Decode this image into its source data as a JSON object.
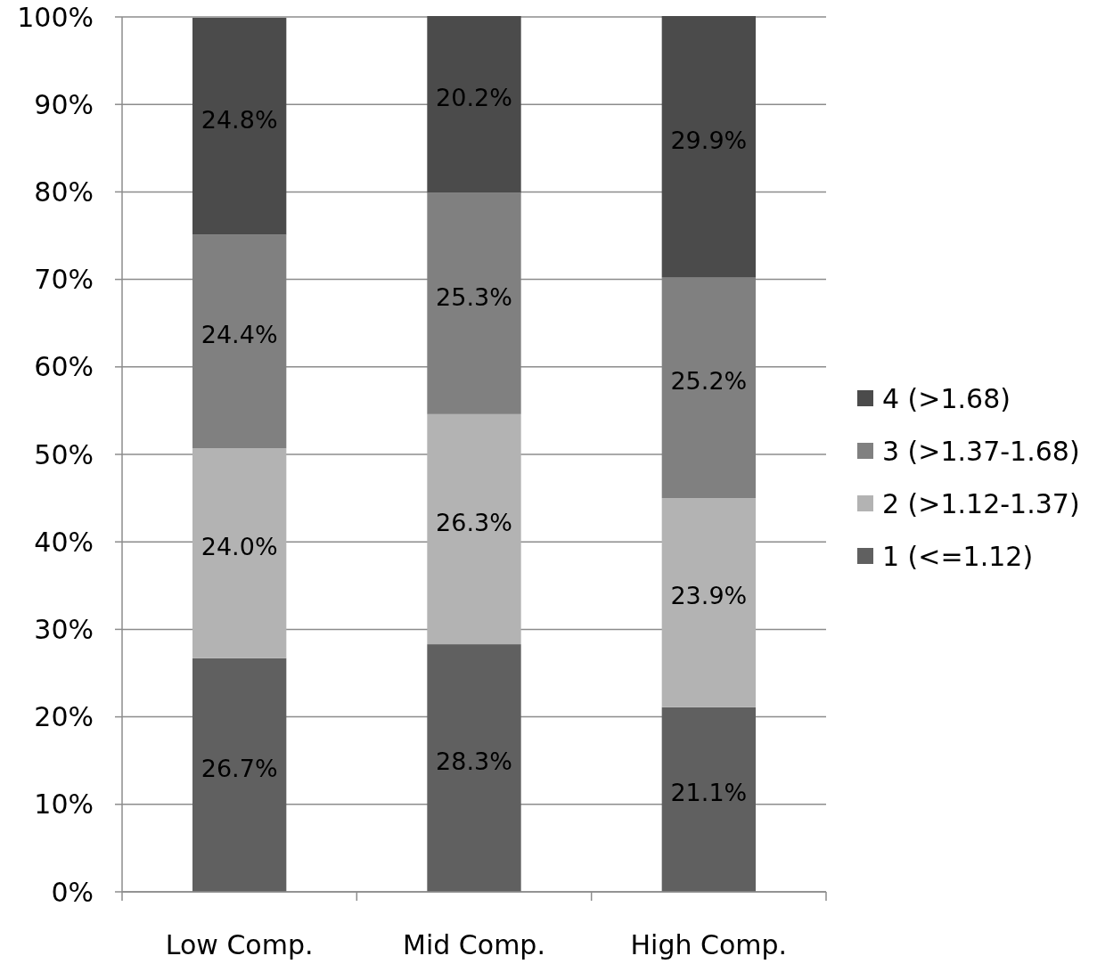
{
  "chart_data": {
    "type": "bar",
    "stacked": true,
    "categories": [
      "Low Comp.",
      "Mid Comp.",
      "High Comp."
    ],
    "series": [
      {
        "name": "1 (<=1.12)",
        "color": "#606060",
        "values": [
          26.7,
          28.3,
          21.1
        ],
        "value_labels": [
          "26.7%",
          "28.3%",
          "21.1%"
        ]
      },
      {
        "name": "2 (>1.12-1.37)",
        "color": "#b3b3b3",
        "values": [
          24.0,
          26.3,
          23.9
        ],
        "value_labels": [
          "24.0%",
          "26.3%",
          "23.9%"
        ]
      },
      {
        "name": "3 (>1.37-1.68)",
        "color": "#808080",
        "values": [
          24.4,
          25.3,
          25.2
        ],
        "value_labels": [
          "24.4%",
          "25.3%",
          "25.2%"
        ]
      },
      {
        "name": "4 (>1.68)",
        "color": "#4b4b4b",
        "values": [
          24.8,
          20.2,
          29.9
        ],
        "value_labels": [
          "24.8%",
          "20.2%",
          "29.9%"
        ]
      }
    ],
    "ylim": [
      0,
      100
    ],
    "yticks": [
      {
        "value": 0,
        "label": "0%"
      },
      {
        "value": 10,
        "label": "10%"
      },
      {
        "value": 20,
        "label": "20%"
      },
      {
        "value": 30,
        "label": "30%"
      },
      {
        "value": 40,
        "label": "40%"
      },
      {
        "value": 50,
        "label": "50%"
      },
      {
        "value": 60,
        "label": "60%"
      },
      {
        "value": 70,
        "label": "70%"
      },
      {
        "value": 80,
        "label": "80%"
      },
      {
        "value": 90,
        "label": "90%"
      },
      {
        "value": 100,
        "label": "100%"
      }
    ],
    "grid": "y",
    "legend": "right"
  }
}
